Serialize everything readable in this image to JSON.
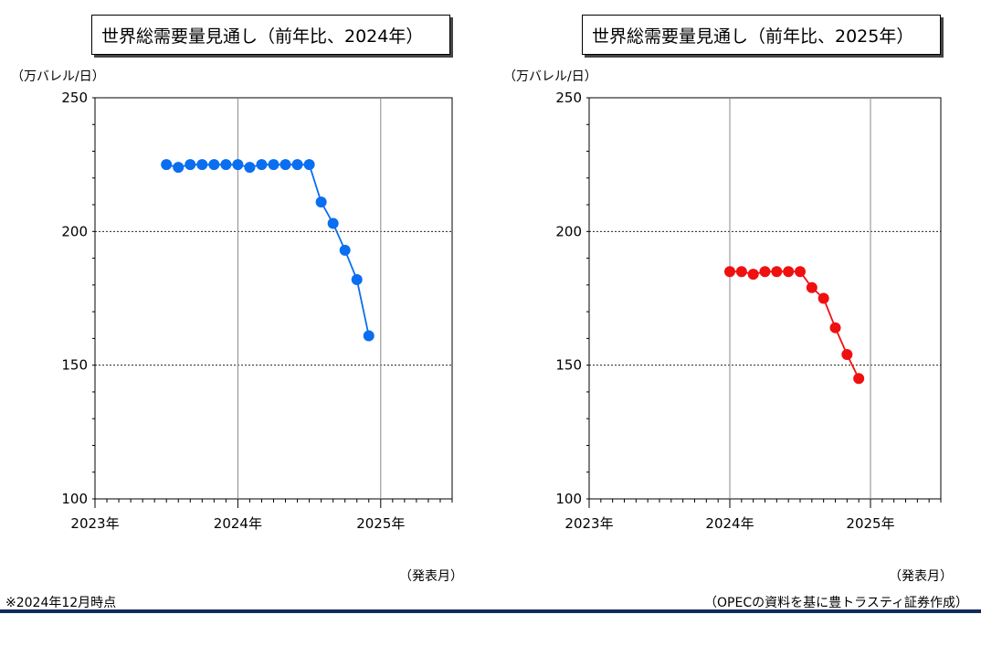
{
  "chart_data": [
    {
      "type": "line",
      "title": "世界総需要量見通し（前年比、2024年）",
      "ylabel": "（万バレル/日）",
      "xlabel": "（発表月）",
      "ylim": [
        100,
        250
      ],
      "yticks": [
        100,
        150,
        200,
        250
      ],
      "xlim": [
        "2023-01",
        "2025-07"
      ],
      "xtick_labels": [
        "2023年",
        "2024年",
        "2025年"
      ],
      "grid": "horizontal dotted at 150 and 200; vertical at 2024年 and 2025年",
      "color": "#0a6ef0",
      "series": [
        {
          "x": [
            "2023-07",
            "2023-08",
            "2023-09",
            "2023-10",
            "2023-11",
            "2023-12",
            "2024-01",
            "2024-02",
            "2024-03",
            "2024-04",
            "2024-05",
            "2024-06",
            "2024-07",
            "2024-08",
            "2024-09",
            "2024-10",
            "2024-11",
            "2024-12"
          ],
          "y": [
            225,
            224,
            225,
            225,
            225,
            225,
            225,
            224,
            225,
            225,
            225,
            225,
            225,
            211,
            203,
            193,
            182,
            161
          ]
        }
      ]
    },
    {
      "type": "line",
      "title": "世界総需要量見通し（前年比、2025年）",
      "ylabel": "（万バレル/日）",
      "xlabel": "（発表月）",
      "ylim": [
        100,
        250
      ],
      "yticks": [
        100,
        150,
        200,
        250
      ],
      "xlim": [
        "2023-01",
        "2025-07"
      ],
      "xtick_labels": [
        "2023年",
        "2024年",
        "2025年"
      ],
      "grid": "horizontal dotted at 150 and 200; vertical at 2024年 and 2025年",
      "color": "#f01010",
      "series": [
        {
          "x": [
            "2024-01",
            "2024-02",
            "2024-03",
            "2024-04",
            "2024-05",
            "2024-06",
            "2024-07",
            "2024-08",
            "2024-09",
            "2024-10",
            "2024-11",
            "2024-12"
          ],
          "y": [
            185,
            185,
            184,
            185,
            185,
            185,
            185,
            179,
            175,
            164,
            154,
            145
          ]
        }
      ]
    }
  ],
  "note": "※2024年12月時点",
  "source": "（OPECの資料を基に豊トラスティ証券作成）"
}
